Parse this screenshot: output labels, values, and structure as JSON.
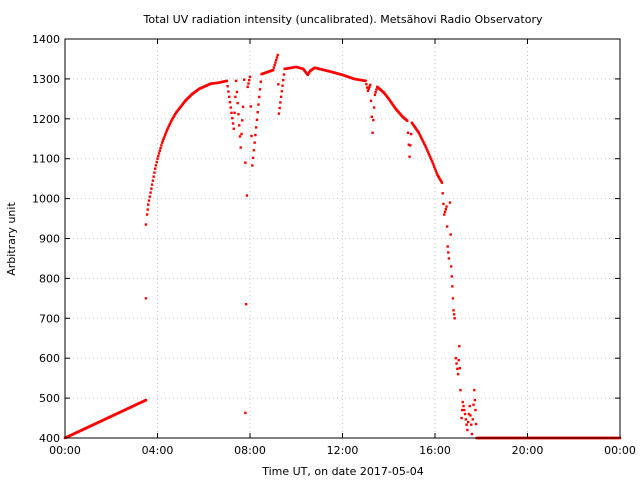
{
  "chart_data": {
    "type": "scatter",
    "title": "Total UV radiation intensity (uncalibrated). Metsähovi Radio Observatory",
    "xlabel": "Time UT, on date 2017-05-04",
    "ylabel": "Arbitrary unit",
    "xlim": [
      0,
      24
    ],
    "ylim": [
      400,
      1400
    ],
    "x_ticks": [
      {
        "value": 0,
        "label": "00:00"
      },
      {
        "value": 4,
        "label": "04:00"
      },
      {
        "value": 8,
        "label": "08:00"
      },
      {
        "value": 12,
        "label": "12:00"
      },
      {
        "value": 16,
        "label": "16:00"
      },
      {
        "value": 20,
        "label": "20:00"
      },
      {
        "value": 24,
        "label": "00:00"
      }
    ],
    "y_ticks": [
      400,
      500,
      600,
      700,
      800,
      900,
      1000,
      1100,
      1200,
      1300,
      1400
    ],
    "grid": true,
    "marker_color": "#ff0000",
    "series": [
      {
        "x": [
          0,
          3.5,
          3.5,
          3.5,
          3.55,
          3.6,
          3.7,
          3.8,
          3.9,
          4.0,
          4.1,
          4.2,
          4.4,
          4.6,
          4.8,
          5.0,
          5.2,
          5.5,
          5.8,
          6.0,
          6.3,
          6.6,
          7.0,
          7.3,
          7.4,
          7.6,
          7.7,
          7.75,
          7.8,
          7.8,
          7.9,
          8.0,
          8.1,
          8.5,
          9.0,
          9.2,
          9.25,
          9.5,
          10.0,
          10.3,
          10.5,
          10.6,
          10.8,
          11.0,
          11.5,
          12.0,
          12.5,
          13.0,
          13.1,
          13.2,
          13.3,
          13.4,
          13.5,
          13.8,
          14.0,
          14.3,
          14.6,
          14.8,
          14.9,
          15.0,
          15.3,
          15.6,
          15.9,
          16.1,
          16.3,
          16.4,
          16.5,
          16.55,
          16.6,
          16.65,
          16.7,
          16.75,
          16.8,
          16.85,
          16.9,
          17.0,
          17.05,
          17.1,
          17.15,
          17.2,
          17.3,
          17.4,
          17.5,
          17.6,
          17.7,
          17.75,
          17.8,
          18,
          24
        ],
        "y": [
          400,
          495,
          750,
          935,
          960,
          985,
          1015,
          1045,
          1075,
          1100,
          1120,
          1140,
          1170,
          1195,
          1215,
          1230,
          1245,
          1262,
          1275,
          1280,
          1288,
          1290,
          1295,
          1175,
          1295,
          1128,
          1230,
          1298,
          1090,
          463,
          1280,
          1305,
          1083,
          1312,
          1322,
          1360,
          1213,
          1325,
          1330,
          1325,
          1310,
          1320,
          1328,
          1325,
          1318,
          1310,
          1300,
          1295,
          1270,
          1285,
          1165,
          1260,
          1280,
          1265,
          1250,
          1225,
          1205,
          1195,
          1105,
          1190,
          1165,
          1130,
          1090,
          1060,
          1040,
          960,
          980,
          880,
          850,
          990,
          830,
          780,
          720,
          700,
          600,
          560,
          630,
          520,
          450,
          490,
          460,
          420,
          480,
          410,
          520,
          470,
          400,
          400,
          400
        ]
      }
    ]
  }
}
